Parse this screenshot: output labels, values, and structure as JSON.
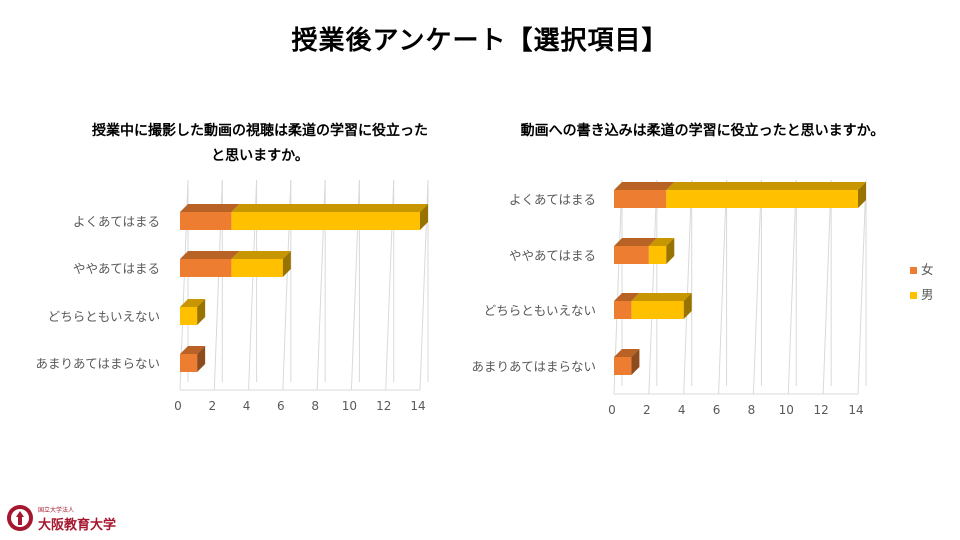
{
  "page": {
    "title": "授業後アンケート【選択項目】"
  },
  "colors": {
    "female": "#ED7D31",
    "male": "#FFC000",
    "axis": "#D9D9D9",
    "text": "#595959"
  },
  "legend": [
    {
      "name": "女",
      "color": "#ED7D31"
    },
    {
      "name": "男",
      "color": "#FFC000"
    }
  ],
  "logo": {
    "small": "国立大学法人",
    "main": "大阪教育大学",
    "icon": "university-seal-icon"
  },
  "chart_data": [
    {
      "type": "bar",
      "orientation": "horizontal",
      "stacked": true,
      "style": "3d",
      "title": "授業中に撮影した動画の視聴は柔道の学習に役立ったと思いますか。",
      "title_lines": [
        "授業中に撮影した動画の視聴は柔道の学習に役立った",
        "と思いますか。"
      ],
      "categories": [
        "よくあてはまる",
        "ややあてはまる",
        "どちらともいえない",
        "あまりあてはまらない"
      ],
      "series": [
        {
          "name": "女",
          "values": [
            3,
            3,
            0,
            1
          ]
        },
        {
          "name": "男",
          "values": [
            11,
            3,
            1,
            0
          ]
        }
      ],
      "xlim": [
        0,
        14
      ],
      "x_ticks": [
        "0",
        "2",
        "4",
        "6",
        "8",
        "10",
        "12",
        "14"
      ],
      "grid": true,
      "legend": false
    },
    {
      "type": "bar",
      "orientation": "horizontal",
      "stacked": true,
      "style": "3d",
      "title": "動画への書き込みは柔道の学習に役立ったと思いますか。",
      "title_lines": [
        "動画への書き込みは柔道の学習に役立ったと思いますか。"
      ],
      "categories": [
        "よくあてはまる",
        "ややあてはまる",
        "どちらともいえない",
        "あまりあてはまらない"
      ],
      "series": [
        {
          "name": "女",
          "values": [
            3,
            2,
            1,
            1
          ]
        },
        {
          "name": "男",
          "values": [
            11,
            1,
            3,
            0
          ]
        }
      ],
      "xlim": [
        0,
        14
      ],
      "x_ticks": [
        "0",
        "2",
        "4",
        "6",
        "8",
        "10",
        "12",
        "14"
      ],
      "grid": true,
      "legend": "right"
    }
  ]
}
